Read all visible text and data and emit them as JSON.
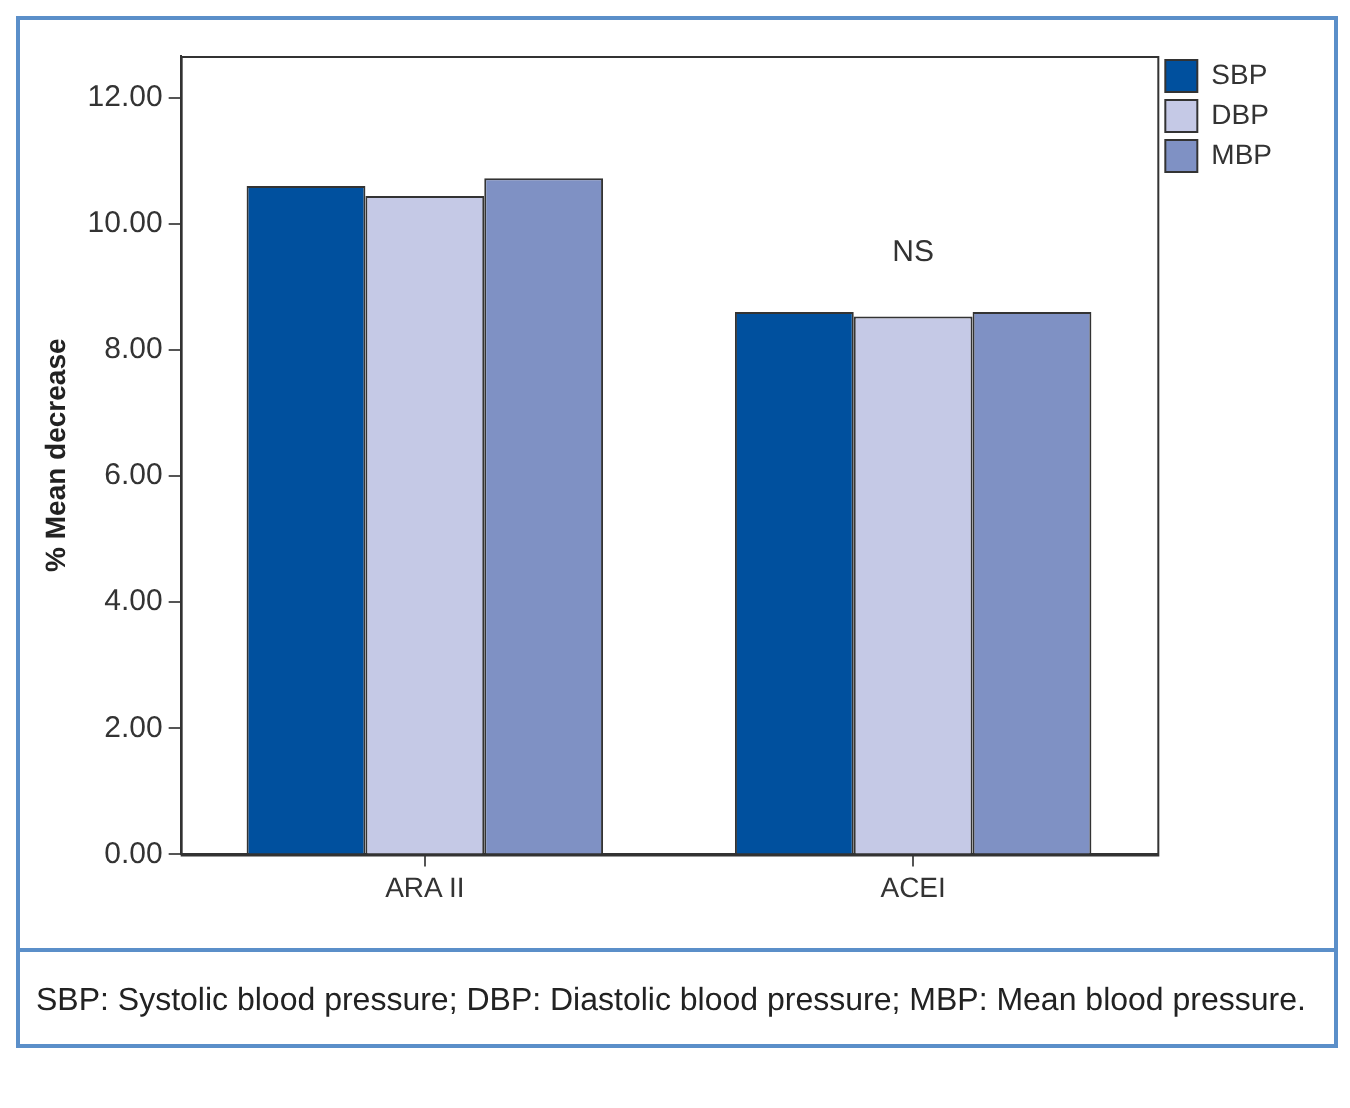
{
  "chart_data": {
    "type": "bar",
    "ylabel": "% Mean decrease",
    "categories": [
      "ARA II",
      "ACEI"
    ],
    "series": [
      {
        "name": "SBP",
        "color": "#00509e",
        "values": [
          10.6,
          8.6
        ]
      },
      {
        "name": "DBP",
        "color": "#c5c9e6",
        "values": [
          10.44,
          8.53
        ]
      },
      {
        "name": "MBP",
        "color": "#7f91c4",
        "values": [
          10.72,
          8.6
        ]
      }
    ],
    "ylim": [
      0,
      12.66
    ],
    "yticks": [
      {
        "value": 0,
        "label": "0.00"
      },
      {
        "value": 2,
        "label": "2.00"
      },
      {
        "value": 4,
        "label": "4.00"
      },
      {
        "value": 6,
        "label": "6.00"
      },
      {
        "value": 8,
        "label": "8.00"
      },
      {
        "value": 10,
        "label": "10.00"
      },
      {
        "value": 12,
        "label": "12.00"
      }
    ],
    "grid": false,
    "legend": "top right",
    "annotations": [
      "NS",
      "SBP: Systolic blood pressure; DBP: Diastolic blood pressure; MBP: Mean blood pressure."
    ]
  }
}
